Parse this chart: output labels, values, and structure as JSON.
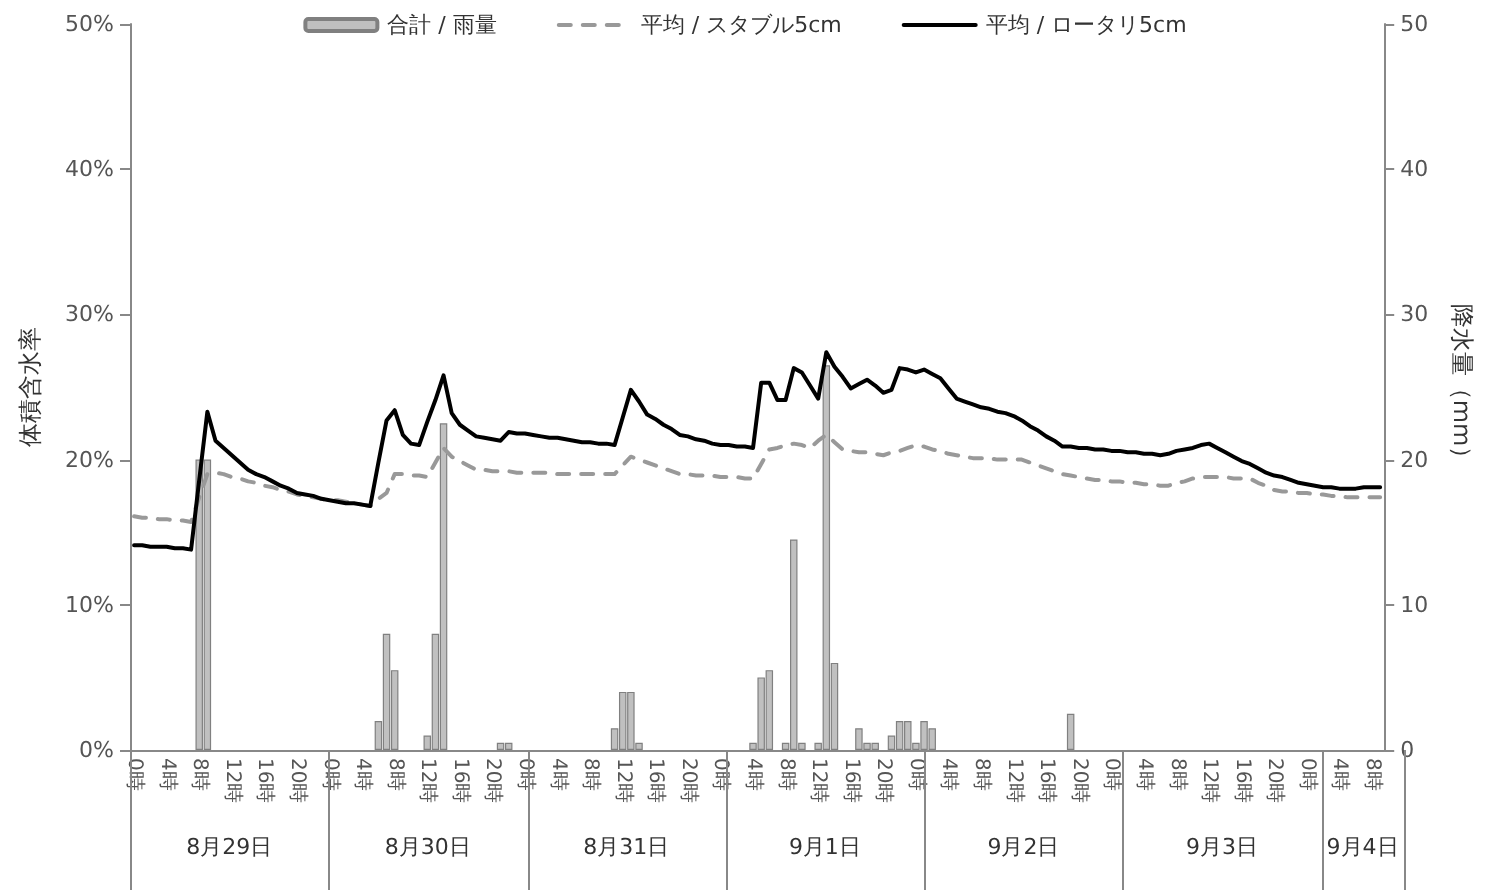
{
  "chart_data": {
    "type": "bar",
    "ylabel": "体積含水率",
    "y2label": "降水量（mm）",
    "legend": "top",
    "categories": [
      "0時",
      null,
      null,
      null,
      "4時",
      null,
      null,
      null,
      "8時",
      null,
      null,
      null,
      "12時",
      null,
      null,
      null,
      "16時",
      null,
      null,
      null,
      "20時",
      null,
      null,
      null,
      "0時",
      null,
      null,
      null,
      "4時",
      null,
      null,
      null,
      "8時",
      null,
      null,
      null,
      "12時",
      null,
      null,
      null,
      "16時",
      null,
      null,
      null,
      "20時",
      null,
      null,
      null,
      "0時",
      null,
      null,
      null,
      "4時",
      null,
      null,
      null,
      "8時",
      null,
      null,
      null,
      "12時",
      null,
      null,
      null,
      "16時",
      null,
      null,
      null,
      "20時",
      null,
      null,
      null,
      "0時",
      null,
      null,
      null,
      "4時",
      null,
      null,
      null,
      "8時",
      null,
      null,
      null,
      "12時",
      null,
      null,
      null,
      "16時",
      null,
      null,
      null,
      "20時",
      null,
      null,
      null,
      "0時",
      null,
      null,
      null,
      "4時",
      null,
      null,
      null,
      "8時",
      null,
      null,
      null,
      "12時",
      null,
      null,
      null,
      "16時",
      null,
      null,
      null,
      "20時",
      null,
      null,
      null,
      "0時",
      null,
      null,
      null,
      "4時",
      null,
      null,
      null,
      "8時",
      null,
      null,
      null,
      "12時",
      null,
      null,
      null,
      "16時",
      null,
      null,
      null,
      "20時",
      null,
      null,
      null,
      "0時",
      null,
      null,
      null,
      "4時",
      null,
      null,
      null,
      "8時",
      null
    ],
    "annotations": [
      "8月29日",
      "8月30日",
      "8月31日",
      "9月1日",
      "9月2日",
      "9月3日",
      "9月4日"
    ],
    "ylim": [
      0,
      50
    ],
    "yticks": [
      {
        "value": 0,
        "label": "0%"
      },
      {
        "value": 10,
        "label": "10%"
      },
      {
        "value": 20,
        "label": "20%"
      },
      {
        "value": 30,
        "label": "30%"
      },
      {
        "value": 40,
        "label": "40%"
      },
      {
        "value": 50,
        "label": "50%"
      }
    ],
    "y2lim": [
      0,
      50
    ],
    "y2ticks": [
      0,
      10,
      20,
      30,
      40,
      50
    ],
    "series": [
      {
        "name": "合計 / 雨量",
        "color": "#c0c0c0",
        "axis": "y2",
        "values": [
          null,
          null,
          null,
          null,
          null,
          null,
          null,
          null,
          20,
          20,
          null,
          null,
          null,
          null,
          null,
          null,
          null,
          null,
          null,
          null,
          null,
          null,
          null,
          null,
          null,
          null,
          null,
          null,
          null,
          null,
          2,
          8,
          5.5,
          null,
          null,
          null,
          1,
          8,
          22.5,
          null,
          null,
          null,
          null,
          null,
          null,
          0.5,
          0.5,
          null,
          null,
          null,
          null,
          null,
          null,
          null,
          null,
          null,
          null,
          null,
          null,
          1.5,
          4,
          4,
          0.5,
          null,
          null,
          null,
          null,
          null,
          null,
          null,
          null,
          null,
          null,
          null,
          null,
          null,
          0.5,
          5,
          5.5,
          null,
          0.5,
          14.5,
          0.5,
          null,
          0.5,
          26.5,
          6,
          null,
          null,
          1.5,
          0.5,
          0.5,
          null,
          1,
          2,
          2,
          0.5,
          2,
          1.5,
          null,
          null,
          null,
          null,
          null,
          null,
          null,
          null,
          null,
          null,
          null,
          null,
          null,
          null,
          null,
          null,
          2.5,
          null,
          null,
          null,
          null,
          null,
          null,
          null,
          null,
          null,
          null,
          null,
          null,
          null,
          null,
          null,
          null,
          null,
          null,
          null,
          null,
          null,
          null,
          null,
          null,
          null,
          null,
          null,
          null,
          null,
          null,
          null,
          null,
          null,
          null,
          null,
          null,
          null,
          null
        ]
      },
      {
        "type": "line",
        "name": "平均 / スタブル5cm",
        "color": "#999999",
        "line_style": "dashed",
        "values": [
          16.1,
          16.0,
          16.0,
          15.9,
          15.9,
          15.8,
          15.8,
          15.7,
          17.4,
          19.0,
          19.1,
          19.0,
          18.8,
          18.7,
          18.5,
          18.4,
          18.2,
          18.1,
          17.9,
          17.8,
          17.6,
          17.5,
          17.4,
          17.3,
          17.2,
          17.2,
          17.1,
          17.0,
          16.9,
          16.8,
          17.3,
          17.7,
          19.0,
          19.0,
          18.9,
          18.9,
          18.8,
          19.8,
          20.8,
          20.2,
          19.9,
          19.6,
          19.3,
          19.3,
          19.2,
          19.2,
          19.2,
          19.1,
          19.1,
          19.1,
          19.1,
          19.1,
          19.0,
          19.0,
          19.0,
          19.0,
          19.0,
          19.0,
          19.0,
          19.0,
          19.6,
          20.2,
          20.0,
          19.8,
          19.6,
          19.4,
          19.2,
          19.0,
          19.0,
          18.9,
          18.9,
          18.9,
          18.8,
          18.8,
          18.8,
          18.7,
          18.7,
          19.7,
          20.7,
          20.8,
          21.0,
          21.1,
          21.0,
          20.8,
          21.3,
          21.7,
          21.2,
          20.7,
          20.6,
          20.5,
          20.5,
          20.4,
          20.3,
          20.5,
          20.6,
          20.8,
          21.0,
          20.9,
          20.7,
          20.6,
          20.4,
          20.3,
          20.2,
          20.1,
          20.1,
          20.1,
          20.0,
          20.0,
          20.0,
          20.0,
          19.8,
          19.6,
          19.4,
          19.2,
          19.0,
          18.9,
          18.8,
          18.7,
          18.6,
          18.6,
          18.5,
          18.5,
          18.4,
          18.4,
          18.3,
          18.3,
          18.2,
          18.2,
          18.4,
          18.5,
          18.7,
          18.8,
          18.8,
          18.8,
          18.8,
          18.7,
          18.7,
          18.7,
          18.4,
          18.2,
          17.9,
          17.8,
          17.8,
          17.7,
          17.7,
          17.6,
          17.6,
          17.5,
          17.5,
          17.4,
          17.4,
          17.4,
          17.4,
          17.4
        ]
      },
      {
        "type": "line",
        "name": "平均 / ロータリ5cm",
        "color": "#000000",
        "line_style": "solid",
        "values": [
          14.1,
          14.1,
          14.0,
          14.0,
          14.0,
          13.9,
          13.9,
          13.8,
          18.6,
          23.3,
          21.3,
          20.8,
          20.3,
          19.8,
          19.3,
          19.0,
          18.8,
          18.5,
          18.2,
          18.0,
          17.7,
          17.6,
          17.5,
          17.3,
          17.2,
          17.1,
          17.0,
          17.0,
          16.9,
          16.8,
          19.8,
          22.7,
          23.4,
          21.7,
          21.1,
          21.0,
          22.6,
          24.1,
          25.8,
          23.2,
          22.4,
          22.0,
          21.6,
          21.5,
          21.4,
          21.3,
          21.9,
          21.8,
          21.8,
          21.7,
          21.6,
          21.5,
          21.5,
          21.4,
          21.3,
          21.2,
          21.2,
          21.1,
          21.1,
          21.0,
          22.9,
          24.8,
          24.0,
          23.1,
          22.8,
          22.4,
          22.1,
          21.7,
          21.6,
          21.4,
          21.3,
          21.1,
          21.0,
          21.0,
          20.9,
          20.9,
          20.8,
          25.3,
          25.3,
          24.1,
          24.1,
          26.3,
          26.0,
          25.1,
          24.2,
          27.4,
          26.4,
          25.7,
          24.9,
          25.2,
          25.5,
          25.1,
          24.6,
          24.8,
          26.3,
          26.2,
          26.0,
          26.2,
          25.9,
          25.6,
          24.9,
          24.2,
          24.0,
          23.8,
          23.6,
          23.5,
          23.3,
          23.2,
          23.0,
          22.7,
          22.3,
          22.0,
          21.6,
          21.3,
          20.9,
          20.9,
          20.8,
          20.8,
          20.7,
          20.7,
          20.6,
          20.6,
          20.5,
          20.5,
          20.4,
          20.4,
          20.3,
          20.4,
          20.6,
          20.7,
          20.8,
          21.0,
          21.1,
          20.8,
          20.5,
          20.2,
          19.9,
          19.7,
          19.4,
          19.1,
          18.9,
          18.8,
          18.6,
          18.4,
          18.3,
          18.2,
          18.1,
          18.1,
          18.0,
          18.0,
          18.0,
          18.1,
          18.1,
          18.1
        ]
      }
    ]
  }
}
